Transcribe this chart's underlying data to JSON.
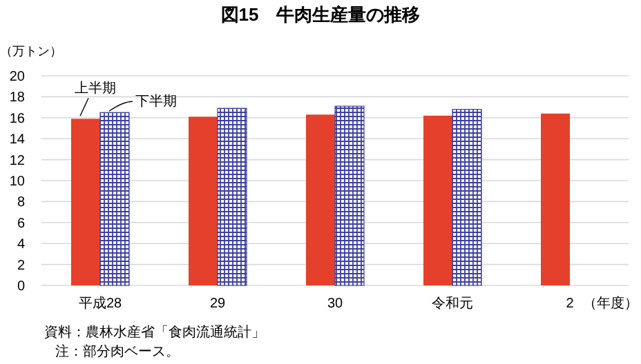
{
  "chart_data": {
    "type": "bar",
    "title": "図15　牛肉生産量の推移",
    "ylabel": "（万トン）",
    "xlabel": "（年度）",
    "categories": [
      "平成28",
      "29",
      "30",
      "令和元",
      "2"
    ],
    "series": [
      {
        "name": "上半期",
        "color": "#e5402b",
        "values": [
          15.9,
          16.1,
          16.3,
          16.2,
          16.4
        ]
      },
      {
        "name": "下半期",
        "color": "#3d3f9e",
        "values": [
          16.5,
          16.9,
          17.1,
          16.8,
          null
        ]
      }
    ],
    "ylim": [
      0,
      20
    ],
    "yticks": [
      0,
      2,
      4,
      6,
      8,
      10,
      12,
      14,
      16,
      18,
      20
    ],
    "grid": "y",
    "annotations": [
      "資料：農林水産省「食肉流通統計」",
      "注：部分肉ベース。"
    ]
  }
}
